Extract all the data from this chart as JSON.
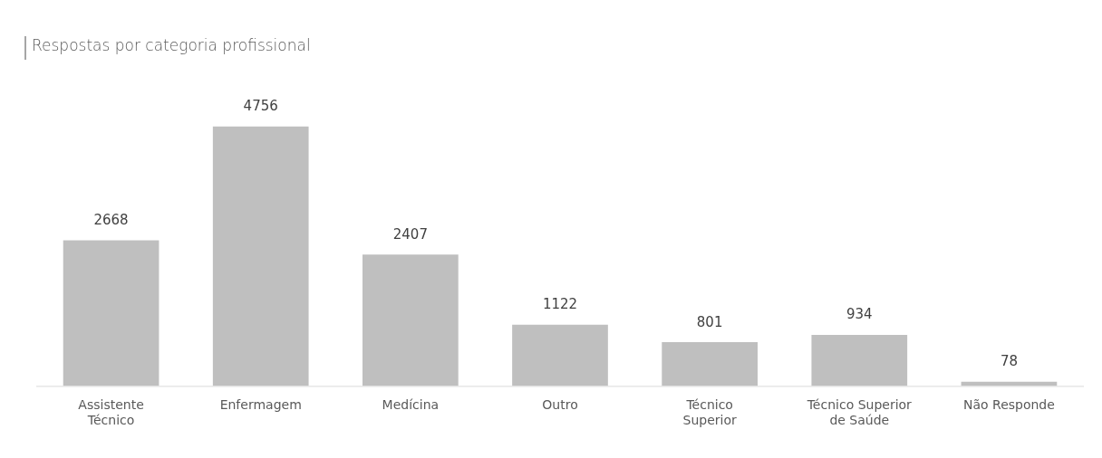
{
  "chart_data": {
    "type": "bar",
    "title": "Respostas por categoria profissional",
    "categories": [
      "Assistente Técnico",
      "Enfermagem",
      "Medícina",
      "Outro",
      "Técnico Superior",
      "Técnico Superior de Saúde",
      "Não Responde"
    ],
    "values": [
      2668,
      4756,
      2407,
      1122,
      801,
      934,
      78
    ],
    "color": "#bfbfbf",
    "data_labels": true,
    "grid": false,
    "legend": false
  }
}
